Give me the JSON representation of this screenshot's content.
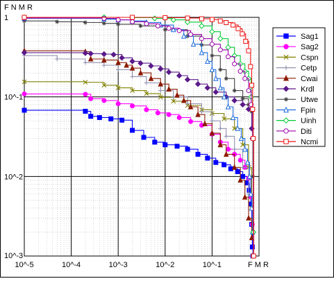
{
  "chart_data": {
    "type": "line",
    "title": "",
    "xlabel": "F M R",
    "ylabel": "F N M R",
    "x_scale": "log",
    "y_scale": "log",
    "xlim": [
      1e-05,
      1
    ],
    "ylim": [
      0.001,
      1
    ],
    "x_ticks": [
      {
        "value": 1e-05,
        "label": "10^-5"
      },
      {
        "value": 0.0001,
        "label": "10^-4"
      },
      {
        "value": 0.001,
        "label": "10^-3"
      },
      {
        "value": 0.01,
        "label": "10^-2"
      },
      {
        "value": 0.1,
        "label": "10^-1"
      }
    ],
    "y_ticks": [
      {
        "value": 1,
        "label": "1"
      },
      {
        "value": 0.1,
        "label": "10^-1"
      },
      {
        "value": 0.01,
        "label": "10^-2"
      },
      {
        "value": 0.001,
        "label": "10^-3"
      }
    ],
    "grid": true,
    "legend_position": "right",
    "series": [
      {
        "name": "Sag1",
        "color": "#0000ff",
        "marker": "square",
        "x": [
          1e-05,
          0.0002,
          0.00026,
          0.0004,
          0.0007,
          0.0012,
          0.002,
          0.0035,
          0.006,
          0.01,
          0.018,
          0.03,
          0.05,
          0.08,
          0.12,
          0.18,
          0.25,
          0.35,
          0.45,
          0.55,
          0.62,
          0.67,
          0.7,
          0.72,
          0.74
        ],
        "y": [
          0.068,
          0.066,
          0.057,
          0.055,
          0.053,
          0.051,
          0.038,
          0.031,
          0.027,
          0.025,
          0.024,
          0.022,
          0.019,
          0.017,
          0.015,
          0.014,
          0.0125,
          0.0115,
          0.01,
          0.0083,
          0.0067,
          0.0045,
          0.0025,
          0.0013,
          0.001
        ]
      },
      {
        "name": "Sag2",
        "color": "#ff00ff",
        "marker": "circle",
        "x": [
          1e-05,
          0.0002,
          0.00026,
          0.0005,
          0.001,
          0.002,
          0.004,
          0.007,
          0.012,
          0.02,
          0.035,
          0.06,
          0.1,
          0.15,
          0.22,
          0.3,
          0.4,
          0.5,
          0.6,
          0.68,
          0.72,
          0.75
        ],
        "y": [
          0.109,
          0.108,
          0.095,
          0.09,
          0.082,
          0.077,
          0.069,
          0.063,
          0.06,
          0.055,
          0.049,
          0.044,
          0.034,
          0.027,
          0.022,
          0.019,
          0.016,
          0.013,
          0.0095,
          0.0055,
          0.0025,
          0.001
        ]
      },
      {
        "name": "Cspn",
        "color": "#808000",
        "marker": "x",
        "x": [
          1e-05,
          0.0002,
          0.0005,
          0.001,
          0.002,
          0.004,
          0.008,
          0.015,
          0.03,
          0.06,
          0.1,
          0.18,
          0.3,
          0.45,
          0.6,
          0.7,
          0.75
        ],
        "y": [
          0.155,
          0.153,
          0.14,
          0.13,
          0.12,
          0.11,
          0.099,
          0.088,
          0.078,
          0.069,
          0.062,
          0.053,
          0.04,
          0.025,
          0.013,
          0.004,
          0.001
        ]
      },
      {
        "name": "Cetp",
        "color": "#9090b0",
        "marker": "plus",
        "x": [
          1e-05,
          5e-05,
          0.0002,
          0.0005,
          0.001,
          0.002,
          0.004,
          0.008,
          0.015,
          0.03,
          0.06,
          0.1,
          0.15,
          0.2,
          0.3,
          0.45,
          0.6,
          0.72,
          0.76
        ],
        "y": [
          0.33,
          0.3,
          0.27,
          0.25,
          0.22,
          0.18,
          0.15,
          0.12,
          0.1,
          0.082,
          0.065,
          0.05,
          0.04,
          0.032,
          0.022,
          0.013,
          0.006,
          0.002,
          0.001
        ]
      },
      {
        "name": "Cwai",
        "color": "#8b1a00",
        "marker": "triangle",
        "x": [
          1e-05,
          0.0002,
          0.00026,
          0.0005,
          0.001,
          0.0015,
          0.002,
          0.003,
          0.005,
          0.008,
          0.012,
          0.018,
          0.025,
          0.035,
          0.05,
          0.07,
          0.1,
          0.15,
          0.2,
          0.3,
          0.4,
          0.5,
          0.6,
          0.7,
          0.75
        ],
        "y": [
          0.38,
          0.37,
          0.3,
          0.29,
          0.27,
          0.25,
          0.23,
          0.2,
          0.17,
          0.145,
          0.125,
          0.105,
          0.09,
          0.075,
          0.06,
          0.046,
          0.035,
          0.025,
          0.019,
          0.013,
          0.009,
          0.0055,
          0.003,
          0.0017,
          0.001
        ]
      },
      {
        "name": "Krdl",
        "color": "#5a1a8a",
        "marker": "diamond",
        "x": [
          1e-05,
          0.0002,
          0.00026,
          0.0005,
          0.0008,
          0.0012,
          0.002,
          0.003,
          0.005,
          0.008,
          0.012,
          0.02,
          0.03,
          0.05,
          0.08,
          0.12,
          0.2,
          0.3,
          0.45,
          0.6,
          0.7,
          0.75
        ],
        "y": [
          0.36,
          0.355,
          0.35,
          0.345,
          0.34,
          0.31,
          0.28,
          0.265,
          0.245,
          0.225,
          0.205,
          0.185,
          0.165,
          0.145,
          0.13,
          0.115,
          0.1,
          0.09,
          0.08,
          0.07,
          0.04,
          0.001
        ]
      },
      {
        "name": "Utwe",
        "color": "#404040",
        "marker": "star",
        "x": [
          1e-05,
          5e-05,
          0.0002,
          0.0005,
          0.001,
          0.003,
          0.01,
          0.03,
          0.06,
          0.1,
          0.15,
          0.2,
          0.3,
          0.45,
          0.6,
          0.7,
          0.74,
          0.76
        ],
        "y": [
          0.9,
          0.88,
          0.86,
          0.84,
          0.82,
          0.78,
          0.7,
          0.58,
          0.45,
          0.33,
          0.22,
          0.17,
          0.12,
          0.095,
          0.08,
          0.065,
          0.01,
          0.001
        ]
      },
      {
        "name": "Fpin",
        "color": "#1a6adb",
        "marker": "triangle-open",
        "x": [
          1e-05,
          0.0005,
          0.001,
          0.002,
          0.004,
          0.008,
          0.015,
          0.025,
          0.04,
          0.06,
          0.08,
          0.1,
          0.12,
          0.15,
          0.18,
          0.22,
          0.28,
          0.35,
          0.42,
          0.5,
          0.57,
          0.63,
          0.67,
          0.7,
          0.73,
          0.75
        ],
        "y": [
          0.97,
          0.95,
          0.93,
          0.9,
          0.86,
          0.8,
          0.7,
          0.58,
          0.46,
          0.36,
          0.28,
          0.22,
          0.17,
          0.13,
          0.1,
          0.075,
          0.055,
          0.04,
          0.03,
          0.022,
          0.015,
          0.01,
          0.006,
          0.004,
          0.002,
          0.001
        ]
      },
      {
        "name": "Uinh",
        "color": "#00cc33",
        "marker": "diamond-open",
        "x": [
          1e-05,
          0.0005,
          0.002,
          0.006,
          0.015,
          0.03,
          0.06,
          0.1,
          0.15,
          0.22,
          0.3,
          0.4,
          0.5,
          0.6,
          0.68,
          0.73,
          0.76
        ],
        "y": [
          1,
          1,
          0.99,
          0.97,
          0.93,
          0.87,
          0.78,
          0.66,
          0.54,
          0.42,
          0.33,
          0.26,
          0.21,
          0.17,
          0.1,
          0.03,
          0.002
        ]
      },
      {
        "name": "Diti",
        "color": "#9900aa",
        "marker": "circle-open",
        "x": [
          1e-05,
          0.0005,
          0.001,
          0.002,
          0.004,
          0.007,
          0.012,
          0.02,
          0.035,
          0.06,
          0.1,
          0.15,
          0.22,
          0.3,
          0.4,
          0.5,
          0.6,
          0.68,
          0.73,
          0.76
        ],
        "y": [
          0.98,
          0.97,
          0.93,
          0.88,
          0.83,
          0.78,
          0.73,
          0.68,
          0.61,
          0.54,
          0.46,
          0.39,
          0.32,
          0.26,
          0.21,
          0.17,
          0.12,
          0.08,
          0.03,
          0.001
        ]
      },
      {
        "name": "Ncmi",
        "color": "#ee1111",
        "marker": "square-open",
        "x": [
          1e-05,
          0.002,
          0.01,
          0.03,
          0.06,
          0.1,
          0.15,
          0.2,
          0.28,
          0.36,
          0.44,
          0.52,
          0.6,
          0.66,
          0.7,
          0.73,
          0.75,
          0.77
        ],
        "y": [
          1,
          1,
          0.99,
          0.98,
          0.96,
          0.94,
          0.9,
          0.86,
          0.8,
          0.72,
          0.62,
          0.5,
          0.38,
          0.24,
          0.14,
          0.07,
          0.03,
          0.001
        ]
      }
    ]
  }
}
